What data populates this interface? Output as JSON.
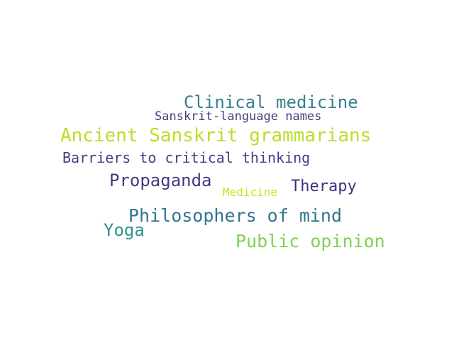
{
  "words": [
    {
      "text": "Clinical medicine",
      "color": "#35808d"
    },
    {
      "text": "Sanskrit-language names",
      "color": "#46407f"
    },
    {
      "text": "Ancient Sanskrit grammarians",
      "color": "#b9de2c"
    },
    {
      "text": "Barriers to critical thinking",
      "color": "#424086"
    },
    {
      "text": "Propaganda",
      "color": "#463881"
    },
    {
      "text": "Therapy",
      "color": "#43307a"
    },
    {
      "text": "Medicine",
      "color": "#cfe11d"
    },
    {
      "text": "Philosophers of mind",
      "color": "#33758e"
    },
    {
      "text": "Yoga",
      "color": "#2d958b"
    },
    {
      "text": "Public opinion",
      "color": "#7ed24e"
    }
  ]
}
